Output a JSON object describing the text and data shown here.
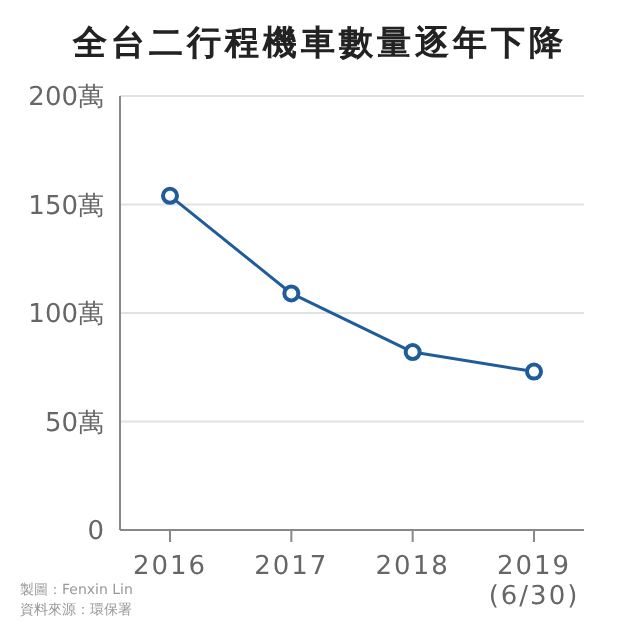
{
  "chart_data": {
    "type": "line",
    "title": "全台二行程機車數量逐年下降",
    "categories": [
      "2016",
      "2017",
      "2018",
      "2019\n(6/30)"
    ],
    "series": [
      {
        "color": "#1f5c99",
        "values": [
          154,
          109,
          82,
          73
        ]
      }
    ],
    "ylim": [
      0,
      200
    ],
    "yticks": [
      0,
      {
        "value": 50,
        "label": "50萬"
      },
      {
        "value": 100,
        "label": "100萬"
      },
      {
        "value": 150,
        "label": "150萬"
      },
      {
        "value": 200,
        "label": "200萬"
      }
    ],
    "grid": "y",
    "marker": "circle",
    "line_style": "solid",
    "legend": false,
    "annotations": [
      "製圖：Fenxin Lin",
      "資料來源：環保署"
    ]
  }
}
